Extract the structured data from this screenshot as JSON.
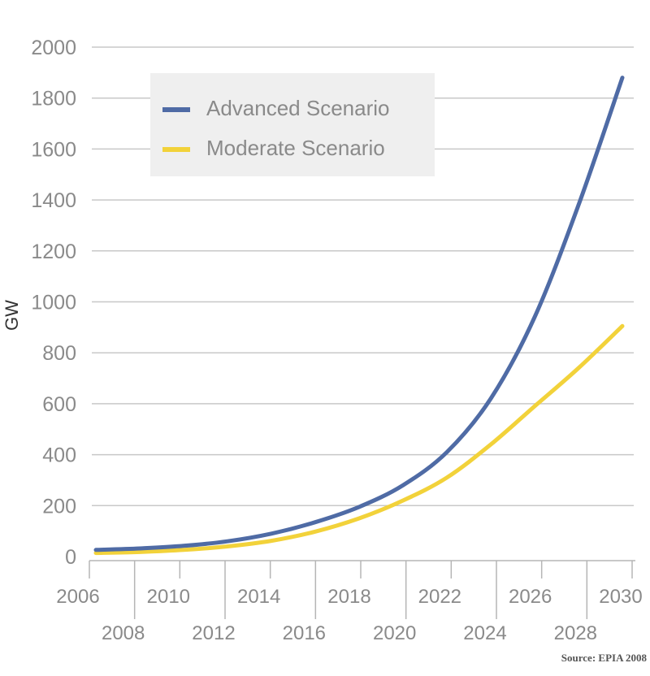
{
  "chart_data": {
    "type": "line",
    "title": "",
    "xlabel": "",
    "ylabel": "GW",
    "source": "Source: EPIA 2008",
    "ylim": [
      0,
      2000
    ],
    "xlim": [
      2006,
      2030
    ],
    "y_ticks": [
      0,
      200,
      400,
      600,
      800,
      1000,
      1200,
      1400,
      1600,
      1800,
      2000
    ],
    "x_ticks_top": [
      "2006",
      "2010",
      "2014",
      "2018",
      "2022",
      "2026",
      "2030"
    ],
    "x_ticks_bottom": [
      "2008",
      "2012",
      "2016",
      "2020",
      "2024",
      "2028"
    ],
    "grid": "horizontal",
    "legend_position": "top-left",
    "x": [
      2006,
      2008,
      2010,
      2012,
      2014,
      2016,
      2018,
      2020,
      2022,
      2024,
      2026,
      2028,
      2030
    ],
    "series": [
      {
        "name": "Advanced Scenario",
        "color": "#4f6ba5",
        "values": [
          26,
          32,
          42,
          60,
          90,
          135,
          195,
          280,
          410,
          620,
          940,
          1380,
          1880
        ]
      },
      {
        "name": "Moderate Scenario",
        "color": "#f2d23a",
        "values": [
          14,
          18,
          26,
          40,
          62,
          98,
          150,
          220,
          310,
          440,
          590,
          740,
          905
        ]
      }
    ]
  }
}
